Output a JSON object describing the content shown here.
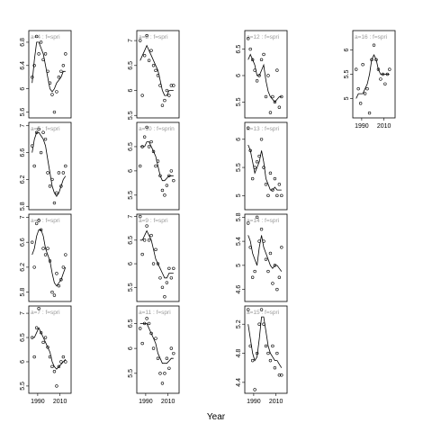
{
  "xlabel": "Year",
  "chart_data": [
    {
      "type": "scatter",
      "title": "a=4 : f=spri",
      "x": [
        1985,
        1987,
        1989,
        1991,
        1993,
        1995,
        1997,
        1999,
        2001,
        2003,
        2005,
        2007,
        2009,
        2011,
        2013,
        2015
      ],
      "values": [
        6.2,
        6.4,
        6.9,
        6.6,
        6.8,
        6.5,
        6.6,
        6.3,
        6.1,
        5.9,
        5.6,
        5.95,
        6.2,
        6.3,
        6.4,
        6.6
      ],
      "smooth": [
        6.1,
        6.5,
        6.8,
        6.8,
        6.7,
        6.6,
        6.4,
        6.2,
        6.0,
        5.95,
        6.0,
        6.1,
        6.15,
        6.2,
        6.3,
        6.3
      ],
      "xlim": [
        1982,
        2020
      ],
      "ylim": [
        5.5,
        7.0
      ],
      "yticks": [
        5.6,
        6.0,
        6.4,
        6.8
      ]
    },
    {
      "type": "scatter",
      "title": "a=5 : f=spri",
      "x": [
        1985,
        1987,
        1989,
        1991,
        1993,
        1995,
        1997,
        1999,
        2001,
        2003,
        2005,
        2007,
        2009,
        2011,
        2013,
        2015
      ],
      "values": [
        6.7,
        6.4,
        6.9,
        6.95,
        6.6,
        6.9,
        6.8,
        6.3,
        6.1,
        6.2,
        5.85,
        6.0,
        6.3,
        6.1,
        6.3,
        6.4
      ],
      "smooth": [
        6.6,
        6.8,
        6.9,
        6.9,
        6.85,
        6.8,
        6.7,
        6.5,
        6.3,
        6.1,
        6.0,
        5.95,
        6.0,
        6.1,
        6.2,
        6.25
      ],
      "xlim": [
        1982,
        2020
      ],
      "ylim": [
        5.75,
        7.05
      ],
      "yticks": [
        5.8,
        6.2,
        6.6,
        7.0
      ]
    },
    {
      "type": "scatter",
      "title": "a=6 : f=spri",
      "x": [
        1985,
        1987,
        1989,
        1991,
        1993,
        1995,
        1997,
        1999,
        2001,
        2003,
        2005,
        2007,
        2009,
        2011,
        2013,
        2015
      ],
      "values": [
        6.6,
        6.2,
        6.9,
        6.95,
        6.8,
        6.5,
        6.4,
        6.5,
        6.3,
        5.8,
        5.75,
        6.1,
        5.9,
        6.0,
        6.2,
        6.4
      ],
      "smooth": [
        6.4,
        6.5,
        6.7,
        6.8,
        6.8,
        6.7,
        6.5,
        6.4,
        6.3,
        6.1,
        5.95,
        5.9,
        5.95,
        6.0,
        6.1,
        6.2
      ],
      "xlim": [
        1982,
        2020
      ],
      "ylim": [
        5.65,
        7.05
      ],
      "yticks": [
        5.8,
        6.2,
        6.6,
        7.0
      ]
    },
    {
      "type": "scatter",
      "title": "a=7 : f=spri",
      "x": [
        1985,
        1987,
        1989,
        1991,
        1993,
        1995,
        1997,
        1999,
        2001,
        2003,
        2005,
        2007,
        2009,
        2011,
        2013,
        2015
      ],
      "values": [
        6.5,
        6.1,
        6.7,
        7.1,
        6.6,
        6.4,
        6.5,
        6.3,
        6.1,
        5.9,
        5.8,
        5.5,
        5.9,
        6.0,
        6.1,
        6.0
      ],
      "smooth": [
        6.5,
        6.5,
        6.6,
        6.7,
        6.6,
        6.5,
        6.4,
        6.3,
        6.2,
        6.0,
        5.9,
        5.85,
        5.9,
        5.95,
        6.0,
        6.05
      ],
      "xlim": [
        1982,
        2020
      ],
      "ylim": [
        5.35,
        7.15
      ],
      "yticks": [
        5.5,
        6.0,
        6.5,
        7.0
      ],
      "xticks": [
        1990,
        2010
      ]
    },
    {
      "type": "scatter",
      "title": "a=8 : f=spri",
      "x": [
        1985,
        1987,
        1989,
        1991,
        1993,
        1995,
        1997,
        1999,
        2001,
        2003,
        2005,
        2007,
        2009,
        2011,
        2013,
        2015
      ],
      "values": [
        7.0,
        5.9,
        6.7,
        7.1,
        6.6,
        6.8,
        6.5,
        6.4,
        6.3,
        6.1,
        5.7,
        5.8,
        6.0,
        5.9,
        6.1,
        6.1
      ],
      "smooth": [
        6.6,
        6.7,
        6.8,
        6.9,
        6.8,
        6.7,
        6.6,
        6.5,
        6.4,
        6.2,
        6.0,
        5.9,
        5.9,
        6.0,
        6.0,
        6.0
      ],
      "xlim": [
        1982,
        2020
      ],
      "ylim": [
        5.45,
        7.2
      ],
      "yticks": [
        5.5,
        6.0,
        6.5,
        7.0
      ]
    },
    {
      "type": "scatter",
      "title": "a=10 : f=sprin",
      "x": [
        1985,
        1987,
        1989,
        1991,
        1993,
        1995,
        1997,
        1999,
        2001,
        2003,
        2005,
        2007,
        2009,
        2011,
        2013,
        2015
      ],
      "values": [
        6.1,
        6.5,
        6.7,
        6.9,
        6.5,
        6.6,
        6.4,
        6.1,
        6.2,
        5.9,
        5.6,
        5.5,
        5.7,
        5.9,
        6.0,
        5.8
      ],
      "smooth": [
        6.5,
        6.5,
        6.5,
        6.6,
        6.6,
        6.5,
        6.4,
        6.3,
        6.1,
        5.9,
        5.8,
        5.8,
        5.85,
        5.9,
        5.9,
        5.9
      ],
      "xlim": [
        1982,
        2020
      ],
      "ylim": [
        5.2,
        7.0
      ],
      "yticks": [
        5.5,
        6.0,
        6.5
      ]
    },
    {
      "type": "scatter",
      "title": "a=9 : f=spri",
      "x": [
        1985,
        1987,
        1989,
        1991,
        1993,
        1995,
        1997,
        1999,
        2001,
        2003,
        2005,
        2007,
        2009,
        2011,
        2013,
        2015
      ],
      "values": [
        7.0,
        6.2,
        6.5,
        6.8,
        6.5,
        6.6,
        6.0,
        6.3,
        6.0,
        5.7,
        5.5,
        5.3,
        5.6,
        5.9,
        5.7,
        5.9
      ],
      "smooth": [
        6.5,
        6.5,
        6.6,
        6.7,
        6.6,
        6.5,
        6.3,
        6.1,
        6.0,
        5.9,
        5.8,
        5.7,
        5.7,
        5.8,
        5.8,
        5.8
      ],
      "xlim": [
        1982,
        2020
      ],
      "ylim": [
        5.2,
        7.05
      ],
      "yticks": [
        5.5,
        6.0,
        6.5,
        7.0
      ]
    },
    {
      "type": "scatter",
      "title": "a=11 : f=spri",
      "x": [
        1985,
        1987,
        1989,
        1991,
        1993,
        1995,
        1997,
        1999,
        2001,
        2003,
        2005,
        2007,
        2009,
        2011,
        2013,
        2015
      ],
      "values": [
        6.4,
        6.1,
        6.5,
        6.6,
        6.5,
        6.3,
        6.0,
        6.2,
        5.8,
        5.5,
        5.3,
        5.5,
        5.8,
        5.6,
        6.0,
        5.9
      ],
      "smooth": [
        6.5,
        6.5,
        6.5,
        6.5,
        6.4,
        6.3,
        6.2,
        6.1,
        5.9,
        5.8,
        5.7,
        5.7,
        5.7,
        5.75,
        5.8,
        5.8
      ],
      "xlim": [
        1982,
        2020
      ],
      "ylim": [
        5.1,
        6.85
      ],
      "yticks": [
        5.5,
        6.0,
        6.5
      ],
      "xticks": [
        1990,
        2010
      ]
    },
    {
      "type": "scatter",
      "title": "a=12 : f=spri",
      "x": [
        1985,
        1987,
        1989,
        1991,
        1993,
        1995,
        1997,
        1999,
        2001,
        2003,
        2005,
        2007,
        2009,
        2011,
        2013,
        2015
      ],
      "values": [
        6.7,
        6.5,
        6.3,
        6.1,
        5.9,
        6.0,
        6.3,
        6.4,
        5.6,
        6.0,
        5.3,
        5.6,
        5.5,
        6.1,
        5.4,
        5.6
      ],
      "smooth": [
        6.3,
        6.4,
        6.3,
        6.2,
        6.0,
        6.0,
        6.1,
        6.2,
        5.9,
        5.7,
        5.6,
        5.55,
        5.5,
        5.55,
        5.6,
        5.6
      ],
      "xlim": [
        1982,
        2020
      ],
      "ylim": [
        5.2,
        6.85
      ],
      "yticks": [
        5.5,
        6.0,
        6.5
      ]
    },
    {
      "type": "scatter",
      "title": "a=13 : f=spri",
      "x": [
        1985,
        1987,
        1989,
        1991,
        1993,
        1995,
        1997,
        1999,
        2001,
        2003,
        2005,
        2007,
        2009,
        2011,
        2013,
        2015
      ],
      "values": [
        6.2,
        5.8,
        5.3,
        5.5,
        5.6,
        5.7,
        6.0,
        5.5,
        5.2,
        5.0,
        5.4,
        5.1,
        5.3,
        5.0,
        5.2,
        5.0
      ],
      "smooth": [
        5.9,
        5.8,
        5.6,
        5.4,
        5.5,
        5.6,
        5.8,
        5.6,
        5.3,
        5.2,
        5.1,
        5.1,
        5.15,
        5.1,
        5.1,
        5.1
      ],
      "xlim": [
        1982,
        2020
      ],
      "ylim": [
        4.75,
        6.3
      ],
      "yticks": [
        5.0,
        5.5,
        6.0
      ]
    },
    {
      "type": "scatter",
      "title": "a=14 : f=spri",
      "x": [
        1985,
        1987,
        1989,
        1991,
        1993,
        1995,
        1997,
        1999,
        2001,
        2003,
        2005,
        2007,
        2009,
        2011,
        2013,
        2015
      ],
      "values": [
        5.7,
        5.3,
        4.8,
        4.9,
        5.8,
        5.4,
        5.6,
        5.4,
        5.1,
        4.9,
        5.2,
        4.7,
        5.0,
        4.6,
        4.8,
        5.3
      ],
      "smooth": [
        5.5,
        5.4,
        5.2,
        5.1,
        5.0,
        5.3,
        5.5,
        5.3,
        5.2,
        5.1,
        5.0,
        4.95,
        5.0,
        5.0,
        4.95,
        4.9
      ],
      "xlim": [
        1982,
        2020
      ],
      "ylim": [
        4.4,
        5.85
      ],
      "yticks": [
        4.6,
        5.0,
        5.4,
        5.8
      ]
    },
    {
      "type": "scatter",
      "title": "a=15 : f=spri",
      "x": [
        1985,
        1987,
        1989,
        1991,
        1993,
        1995,
        1997,
        1999,
        2001,
        2003,
        2005,
        2007,
        2009,
        2011,
        2013,
        2015
      ],
      "values": [
        5.4,
        4.9,
        4.7,
        4.3,
        4.8,
        5.2,
        5.4,
        5.2,
        4.9,
        4.8,
        4.7,
        4.9,
        4.6,
        4.8,
        4.5,
        4.5
      ],
      "smooth": [
        5.2,
        5.0,
        4.8,
        4.7,
        4.75,
        5.0,
        5.3,
        5.3,
        5.1,
        4.9,
        4.8,
        4.75,
        4.7,
        4.7,
        4.65,
        4.6
      ],
      "xlim": [
        1982,
        2020
      ],
      "ylim": [
        4.25,
        5.45
      ],
      "yticks": [
        4.4,
        4.8,
        5.2
      ],
      "xticks": [
        1990,
        2010
      ]
    },
    {
      "type": "scatter",
      "title": "a=16 : f=spri",
      "x": [
        1985,
        1987,
        1989,
        1991,
        1993,
        1995,
        1997,
        1999,
        2001,
        2003,
        2005,
        2007,
        2009,
        2011,
        2013,
        2015
      ],
      "values": [
        5.6,
        5.2,
        4.9,
        5.7,
        5.1,
        5.2,
        4.7,
        5.8,
        6.1,
        5.8,
        5.6,
        5.4,
        5.5,
        5.3,
        5.5,
        5.6
      ],
      "smooth": [
        5.0,
        5.1,
        5.1,
        5.1,
        5.2,
        5.3,
        5.5,
        5.8,
        5.9,
        5.8,
        5.6,
        5.5,
        5.5,
        5.5,
        5.5,
        5.5
      ],
      "xlim": [
        1982,
        2020
      ],
      "ylim": [
        4.6,
        6.4
      ],
      "yticks": [
        5.0,
        5.5,
        6.0
      ],
      "xticks": [
        1990,
        2010
      ]
    }
  ]
}
